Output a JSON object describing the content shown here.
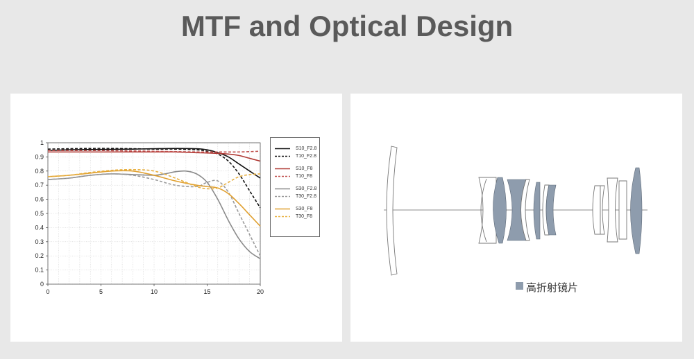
{
  "page": {
    "title": "MTF and Optical Design"
  },
  "chart_data": {
    "type": "line",
    "xlabel": "",
    "ylabel": "",
    "xlim": [
      0,
      20
    ],
    "ylim": [
      0,
      1
    ],
    "x_ticks": [
      "0",
      "5",
      "10",
      "15",
      "20"
    ],
    "y_ticks": [
      "0",
      "0.1",
      "0.2",
      "0.3",
      "0.4",
      "0.5",
      "0.6",
      "0.7",
      "0.8",
      "0.9",
      "1"
    ],
    "grid": true,
    "legend_position": "right",
    "series": [
      {
        "name": "S10_F2.8",
        "color": "#111111",
        "dash": false,
        "x": [
          0,
          2,
          4,
          6,
          8,
          10,
          12,
          14,
          15,
          16,
          17,
          18,
          19,
          20
        ],
        "y": [
          0.945,
          0.95,
          0.952,
          0.953,
          0.955,
          0.958,
          0.96,
          0.958,
          0.95,
          0.93,
          0.9,
          0.85,
          0.8,
          0.75
        ]
      },
      {
        "name": "T10_F2.8",
        "color": "#111111",
        "dash": true,
        "x": [
          0,
          2,
          4,
          6,
          8,
          10,
          12,
          14,
          15,
          16,
          17,
          18,
          19,
          20
        ],
        "y": [
          0.955,
          0.958,
          0.96,
          0.96,
          0.958,
          0.955,
          0.955,
          0.95,
          0.94,
          0.92,
          0.87,
          0.78,
          0.66,
          0.54
        ]
      },
      {
        "name": "S10_F8",
        "color": "#b03a35",
        "dash": false,
        "x": [
          0,
          2,
          4,
          6,
          8,
          10,
          12,
          14,
          16,
          17,
          18,
          19,
          20
        ],
        "y": [
          0.935,
          0.935,
          0.935,
          0.935,
          0.935,
          0.935,
          0.935,
          0.93,
          0.925,
          0.92,
          0.91,
          0.89,
          0.87
        ]
      },
      {
        "name": "T10_F8",
        "color": "#c0504d",
        "dash": true,
        "x": [
          0,
          5,
          10,
          14,
          16,
          18,
          20
        ],
        "y": [
          0.945,
          0.945,
          0.94,
          0.935,
          0.935,
          0.935,
          0.94
        ]
      },
      {
        "name": "S30_F2.8",
        "color": "#8a8a8a",
        "dash": false,
        "x": [
          0,
          2,
          4,
          6,
          8,
          10,
          11,
          12,
          13,
          14,
          15,
          16,
          17,
          18,
          19,
          20
        ],
        "y": [
          0.74,
          0.75,
          0.77,
          0.78,
          0.775,
          0.77,
          0.78,
          0.795,
          0.8,
          0.78,
          0.72,
          0.6,
          0.45,
          0.32,
          0.23,
          0.18
        ]
      },
      {
        "name": "T30_F2.8",
        "color": "#9a9a9a",
        "dash": true,
        "x": [
          0,
          2,
          4,
          6,
          8,
          10,
          12,
          14,
          15,
          16,
          17,
          18,
          19,
          20
        ],
        "y": [
          0.74,
          0.75,
          0.77,
          0.78,
          0.77,
          0.74,
          0.7,
          0.69,
          0.72,
          0.73,
          0.65,
          0.5,
          0.35,
          0.2
        ]
      },
      {
        "name": "S30_F8",
        "color": "#e0a030",
        "dash": false,
        "x": [
          0,
          2,
          4,
          6,
          8,
          10,
          12,
          14,
          15,
          16,
          17,
          18,
          19,
          20
        ],
        "y": [
          0.76,
          0.77,
          0.785,
          0.8,
          0.8,
          0.77,
          0.73,
          0.7,
          0.69,
          0.68,
          0.64,
          0.57,
          0.49,
          0.41
        ]
      },
      {
        "name": "T30_F8",
        "color": "#e8b040",
        "dash": true,
        "x": [
          0,
          2,
          4,
          6,
          8,
          10,
          12,
          14,
          15,
          16,
          17,
          18,
          19,
          20
        ],
        "y": [
          0.76,
          0.77,
          0.79,
          0.805,
          0.81,
          0.8,
          0.75,
          0.69,
          0.675,
          0.68,
          0.72,
          0.76,
          0.775,
          0.78
        ]
      }
    ]
  },
  "lens_diagram": {
    "legend_label": "高折射镜片",
    "legend_color": "#8e9cad"
  }
}
